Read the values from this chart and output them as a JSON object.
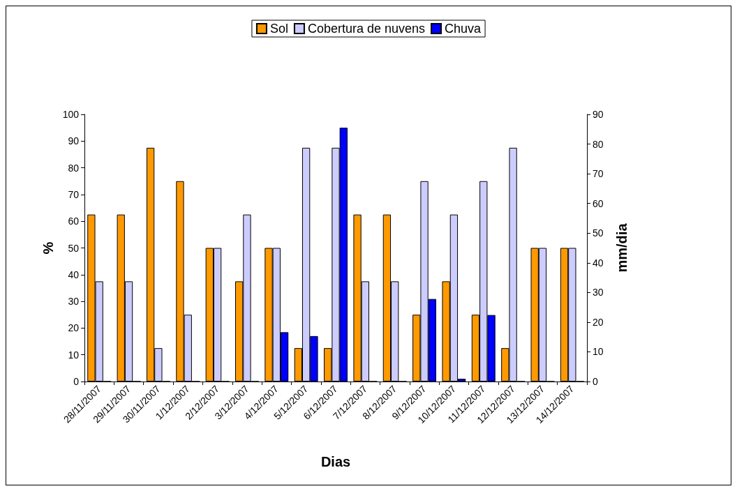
{
  "chart_data": {
    "type": "bar",
    "xlabel": "Dias",
    "ylabel": "%",
    "y2label": "mm/dia",
    "categories": [
      "28/11/2007",
      "29/11/2007",
      "30/11/2007",
      "1/12/2007",
      "2/12/2007",
      "3/12/2007",
      "4/12/2007",
      "5/12/2007",
      "6/12/2007",
      "7/12/2007",
      "8/12/2007",
      "9/12/2007",
      "10/12/2007",
      "11/12/2007",
      "12/12/2007",
      "13/12/2007",
      "14/12/2007"
    ],
    "series": [
      {
        "name": "Sol",
        "color": "#ff9900",
        "values": [
          62.5,
          62.5,
          87.5,
          75,
          50,
          37.5,
          50,
          12.5,
          12.5,
          62.5,
          62.5,
          25,
          37.5,
          25,
          12.5,
          50,
          50
        ]
      },
      {
        "name": "Cobertura de nuvens",
        "color": "#ccccff",
        "values": [
          37.5,
          37.5,
          12.5,
          25,
          50,
          62.5,
          50,
          87.5,
          87.5,
          37.5,
          37.5,
          75,
          62.5,
          75,
          87.5,
          50,
          50
        ]
      },
      {
        "name": "Chuva",
        "color": "#0000ff",
        "axis": "y2",
        "values": [
          0,
          0,
          0,
          0,
          0,
          0,
          16.6,
          15.3,
          85.5,
          0,
          0,
          27.8,
          0.9,
          22.4,
          0,
          0,
          0
        ]
      }
    ],
    "ylim": [
      0,
      100
    ],
    "yticks": [
      0,
      10,
      20,
      30,
      40,
      50,
      60,
      70,
      80,
      90,
      100
    ],
    "y2lim": [
      0,
      90
    ],
    "y2ticks": [
      0,
      10,
      20,
      30,
      40,
      50,
      60,
      70,
      80,
      90
    ],
    "grid": false,
    "legend": "top"
  }
}
